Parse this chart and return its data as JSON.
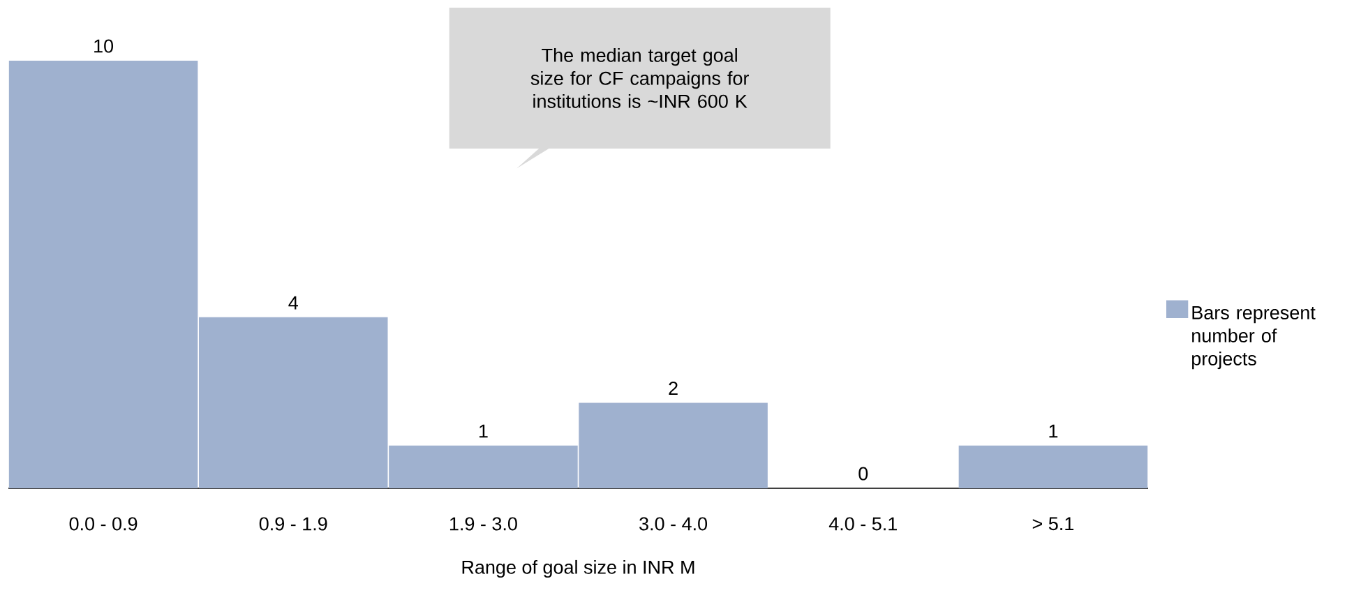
{
  "chart_data": {
    "type": "bar",
    "title": null,
    "xlabel": "Range of goal size in INR M",
    "categories": [
      "0.0 - 0.9",
      "0.9 - 1.9",
      "1.9 - 3.0",
      "3.0 - 4.0",
      "4.0 - 5.1",
      "> 5.1"
    ],
    "series": [
      {
        "name": "Bars represent number of projects",
        "color": "#9fb1cf",
        "values": [
          10,
          4,
          1,
          2,
          0,
          1
        ]
      }
    ],
    "data_labels": true,
    "legend": "right",
    "grid": false,
    "annotations": [
      "The median target goal size for CF campaigns for institutions is ~INR 600 K"
    ]
  }
}
